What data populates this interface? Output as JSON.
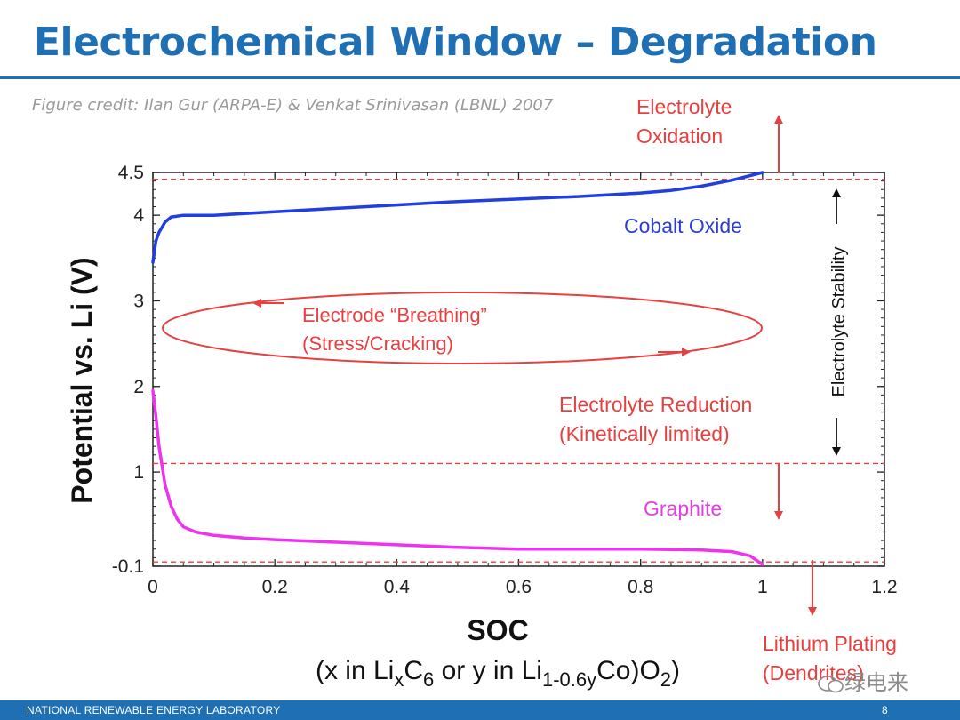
{
  "slide": {
    "title": "Electrochemical Window – Degradation",
    "credit": "Figure credit: Ilan Gur (ARPA-E) & Venkat Srinivasan (LBNL) 2007",
    "footer_org": "NATIONAL RENEWABLE ENERGY LABORATORY",
    "page_number": "8",
    "watermark": "绿电来"
  },
  "chart_data": {
    "type": "line",
    "ylabel": "Potential vs. Li  (V)",
    "xlabel": "SOC",
    "xlabel_sub": {
      "p1": "(x in Li",
      "s1": "x",
      "p2": "C",
      "s2": "6",
      "p3": " or y in Li",
      "s3": "1-0.6y",
      "p4": "Co)O",
      "s4": "2",
      "p5": ")"
    },
    "xlim": [
      0,
      1.2
    ],
    "ylim": [
      -0.1,
      4.5
    ],
    "xticks": [
      0,
      0.2,
      0.4,
      0.6,
      0.8,
      1,
      1.2
    ],
    "xtick_labels": [
      "0",
      "0.2",
      "0.4",
      "0.6",
      "0.8",
      "1",
      "1.2"
    ],
    "yticks": [
      -0.1,
      1,
      2,
      3,
      4,
      4.5
    ],
    "ytick_labels": [
      "-0.1",
      "1",
      "2",
      "3",
      "4",
      "4.5"
    ],
    "grid": false,
    "series": [
      {
        "name": "Cobalt Oxide",
        "color": "#1f3fe0",
        "x": [
          0,
          0.005,
          0.01,
          0.02,
          0.03,
          0.05,
          0.08,
          0.1,
          0.2,
          0.3,
          0.4,
          0.5,
          0.6,
          0.7,
          0.8,
          0.85,
          0.9,
          0.95,
          1.0
        ],
        "y": [
          3.45,
          3.7,
          3.8,
          3.92,
          3.98,
          4.0,
          4.0,
          4.0,
          4.04,
          4.08,
          4.12,
          4.16,
          4.19,
          4.22,
          4.26,
          4.29,
          4.34,
          4.41,
          4.5
        ]
      },
      {
        "name": "Graphite",
        "color": "#ee33ee",
        "x": [
          0,
          0.005,
          0.01,
          0.02,
          0.03,
          0.04,
          0.05,
          0.07,
          0.1,
          0.15,
          0.2,
          0.3,
          0.4,
          0.5,
          0.6,
          0.7,
          0.8,
          0.9,
          0.95,
          0.98,
          1.0
        ],
        "y": [
          1.95,
          1.65,
          1.3,
          0.85,
          0.6,
          0.45,
          0.36,
          0.3,
          0.26,
          0.23,
          0.21,
          0.18,
          0.15,
          0.12,
          0.1,
          0.1,
          0.1,
          0.09,
          0.07,
          0.02,
          -0.08
        ]
      }
    ],
    "thresholds": [
      {
        "label": "Electrolyte Oxidation limit",
        "y": 4.42,
        "color": "#e84040"
      },
      {
        "label": "Electrolyte Reduction limit",
        "y": 1.1,
        "color": "#e84040"
      },
      {
        "label": "Lithium Plating limit",
        "y": -0.05,
        "color": "#e84040"
      }
    ],
    "annotations": {
      "oxidation": [
        "Electrolyte",
        "Oxidation"
      ],
      "cobalt": "Cobalt Oxide",
      "breathing": [
        "Electrode “Breathing”",
        "(Stress/Cracking)"
      ],
      "reduction": [
        "Electrolyte Reduction",
        "(Kinetically limited)"
      ],
      "graphite": "Graphite",
      "stability": "Electrolyte Stability",
      "plating": [
        "Lithium Plating",
        "(Dendrites)"
      ]
    },
    "colors": {
      "axis": "#222222",
      "annotation": "#e84040",
      "dark_text": "#111111",
      "cobalt_label": "#2a3fd0",
      "graphite_label": "#e040e0"
    }
  }
}
